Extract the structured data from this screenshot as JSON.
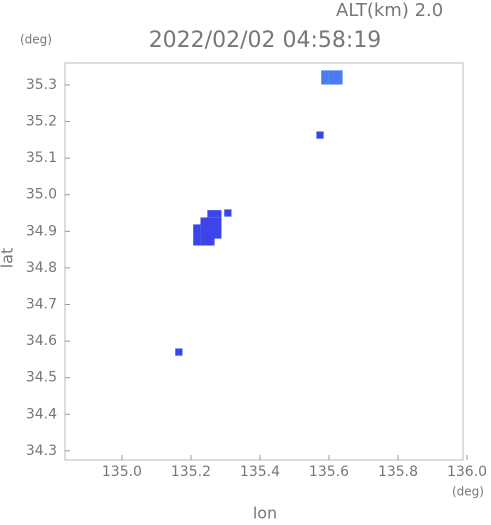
{
  "chart_data": {
    "type": "scatter",
    "title": "2022/02/02 04:58:19",
    "subtitle": "ALT(km) 2.0",
    "x_label": "lon",
    "y_label": "lat",
    "x_unit": "(deg)",
    "y_unit": "(deg)",
    "xlim": [
      134.835,
      136.0
    ],
    "ylim": [
      34.275,
      35.36
    ],
    "xticks": [
      {
        "value": 135.0,
        "label": "135.0"
      },
      135.2,
      135.4,
      135.6,
      135.8,
      {
        "value": 136.0,
        "label": "136.0"
      }
    ],
    "yticks": [
      34.3,
      34.4,
      34.5,
      34.6,
      34.7,
      34.8,
      34.9,
      {
        "value": 35.0,
        "label": "35.0"
      },
      35.1,
      35.2,
      35.3
    ],
    "series": [
      {
        "color": "#3b45e8",
        "x": [
          135.258,
          135.278,
          135.238,
          135.258,
          135.278,
          135.217,
          135.238,
          135.258,
          135.278,
          135.217,
          135.238,
          135.258,
          135.278,
          135.217,
          135.238,
          135.258,
          135.307,
          135.574,
          135.165
        ],
        "y": [
          34.948,
          34.948,
          34.928,
          34.928,
          34.928,
          34.909,
          34.909,
          34.909,
          34.909,
          34.89,
          34.89,
          34.89,
          34.89,
          34.871,
          34.871,
          34.871,
          34.95,
          35.163,
          34.57
        ]
      },
      {
        "color": "#4a7cf0",
        "x": [
          135.588,
          135.609,
          135.629,
          135.588,
          135.609,
          135.629
        ],
        "y": [
          35.33,
          35.33,
          35.33,
          35.311,
          35.311,
          35.311
        ]
      }
    ]
  }
}
